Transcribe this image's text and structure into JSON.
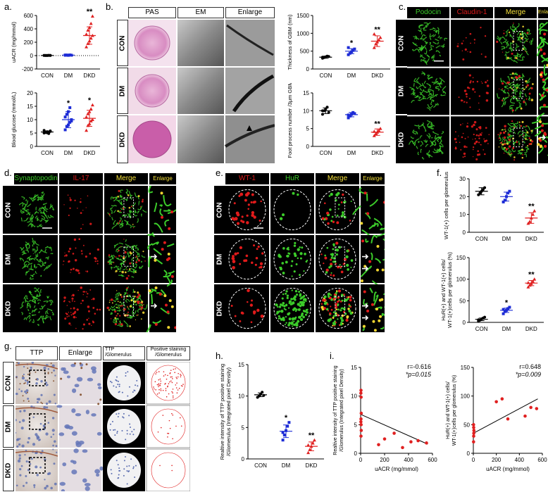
{
  "panel_labels": {
    "a": "a.",
    "b": "b.",
    "c": "c.",
    "d": "d.",
    "e": "e.",
    "f": "f.",
    "g": "g.",
    "h": "h.",
    "i": "i."
  },
  "groups": [
    "CON",
    "DM",
    "DKD"
  ],
  "panel_b": {
    "headers": [
      "PAS",
      "EM",
      "Enlarge"
    ]
  },
  "panel_c": {
    "headers": [
      "Podocin",
      "Claudin-1",
      "Merge",
      "Enlarge"
    ]
  },
  "panel_d": {
    "headers": [
      "Synaptopodin",
      "IL-17",
      "Merge",
      "Enlarge"
    ]
  },
  "panel_e": {
    "headers": [
      "WT-1",
      "HuR",
      "Merge",
      "Enlarge"
    ]
  },
  "panel_g": {
    "headers": [
      "TTP",
      "Enlarge",
      "TTP\n/Glomerulus",
      "Positive staining\n/Glomerulus"
    ]
  },
  "colors": {
    "con": "#000000",
    "dm": "#1c2bd6",
    "dkd": "#e02020",
    "green": "#3ccc2a",
    "red": "#e01b1b",
    "pas": "#d68cc0"
  },
  "chart_data": [
    {
      "id": "a1",
      "type": "scatter",
      "ylabel": "uACR (mg/mmol)",
      "categories": [
        "CON",
        "DM",
        "DKD"
      ],
      "ylim": [
        -200,
        600
      ],
      "yticks": [
        -200,
        0,
        200,
        400,
        600
      ],
      "series": [
        {
          "values": [
            [
              2,
              3,
              1,
              4,
              2,
              3,
              1,
              2,
              3,
              2
            ],
            [
              5,
              8,
              4,
              10,
              6,
              9,
              7,
              5
            ],
            [
              130,
              180,
              220,
              260,
              300,
              320,
              380,
              420,
              480,
              590
            ]
          ],
          "means": [
            2,
            7,
            300
          ],
          "sds": [
            1,
            2,
            130
          ]
        }
      ],
      "annotations": [
        "",
        "",
        "**"
      ]
    },
    {
      "id": "a2",
      "type": "scatter",
      "ylabel": "Blood glucose (mmol/L)",
      "categories": [
        "CON",
        "DM",
        "DKD"
      ],
      "ylim": [
        0,
        20
      ],
      "yticks": [
        0,
        5,
        10,
        15,
        20
      ],
      "series": [
        {
          "values": [
            [
              5,
              5.2,
              5.5,
              4.8,
              5.6,
              6,
              5.3,
              5.1,
              5.4,
              5.8
            ],
            [
              6.2,
              7.5,
              8,
              9,
              10,
              11,
              12,
              13,
              14.5,
              9.5
            ],
            [
              6,
              7.8,
              8.5,
              9.5,
              10,
              11,
              12.2,
              13,
              14,
              15.5
            ]
          ],
          "means": [
            5.4,
            10,
            10.5
          ],
          "sds": [
            0.4,
            3,
            3
          ]
        }
      ],
      "annotations": [
        "",
        "*",
        "*"
      ]
    },
    {
      "id": "b1",
      "type": "scatter",
      "ylabel": "Thickness of GBM (nm)",
      "categories": [
        "CON",
        "DM",
        "DKD"
      ],
      "ylim": [
        0,
        1500
      ],
      "yticks": [
        0,
        500,
        1000,
        1500
      ],
      "series": [
        {
          "values": [
            [
              300,
              320,
              340,
              360,
              350,
              330
            ],
            [
              400,
              440,
              480,
              520,
              560,
              600
            ],
            [
              600,
              700,
              760,
              820,
              880,
              980
            ]
          ],
          "means": [
            330,
            500,
            780
          ],
          "sds": [
            30,
            70,
            150
          ]
        }
      ],
      "annotations": [
        "",
        "*",
        "**"
      ]
    },
    {
      "id": "b2",
      "type": "scatter",
      "ylabel": "Foot process number /3μm GBM",
      "categories": [
        "CON",
        "DM",
        "DKD"
      ],
      "ylim": [
        0,
        15
      ],
      "yticks": [
        0,
        5,
        10,
        15
      ],
      "series": [
        {
          "values": [
            [
              9,
              10,
              10.5,
              11,
              9.5,
              10
            ],
            [
              8,
              8.5,
              9,
              9.5,
              9.2,
              8.8
            ],
            [
              3,
              3.5,
              4,
              4.5,
              5,
              4.2
            ]
          ],
          "means": [
            10,
            8.9,
            4
          ],
          "sds": [
            0.8,
            0.6,
            0.9
          ]
        }
      ],
      "annotations": [
        "",
        "",
        "**"
      ]
    },
    {
      "id": "f1",
      "type": "scatter",
      "ylabel": "WT-1(+) cells per glomerulus",
      "categories": [
        "CON",
        "DM",
        "DKD"
      ],
      "ylim": [
        0,
        30
      ],
      "yticks": [
        0,
        10,
        20,
        30
      ],
      "series": [
        {
          "values": [
            [
              21,
              22,
              23,
              24,
              25
            ],
            [
              17,
              18,
              20,
              22,
              23
            ],
            [
              5,
              6,
              8,
              10,
              12
            ]
          ],
          "means": [
            23,
            20,
            8
          ],
          "sds": [
            2,
            2.5,
            3
          ]
        }
      ],
      "annotations": [
        "",
        "",
        "**"
      ]
    },
    {
      "id": "f2",
      "type": "scatter",
      "ylabel": "HuR(+) and WT-1(+) cells/ WT-1(+)cells per glomerulus (%)",
      "categories": [
        "CON",
        "DM",
        "DKD"
      ],
      "ylim": [
        0,
        150
      ],
      "yticks": [
        0,
        50,
        100,
        150
      ],
      "series": [
        {
          "values": [
            [
              3,
              5,
              8,
              10,
              12,
              6
            ],
            [
              20,
              25,
              28,
              32,
              35,
              30
            ],
            [
              82,
              86,
              90,
              95,
              100,
              92
            ]
          ],
          "means": [
            7,
            28,
            91
          ],
          "sds": [
            3,
            5,
            6
          ]
        }
      ],
      "annotations": [
        "",
        "*",
        "**"
      ]
    },
    {
      "id": "h1",
      "type": "scatter",
      "ylabel": "Realtive intensity of TTP positive staining /Glomerulus (Integrated pixel Density)",
      "categories": [
        "CON",
        "DM",
        "DKD"
      ],
      "ylim": [
        0,
        15
      ],
      "yticks": [
        0,
        5,
        10,
        15
      ],
      "series": [
        {
          "values": [
            [
              9.8,
              10,
              10.3,
              10.6,
              10.1
            ],
            [
              3,
              3.8,
              4.5,
              5.2,
              5.8,
              4.2
            ],
            [
              1,
              1.5,
              2,
              2.5,
              3,
              2.2
            ]
          ],
          "means": [
            10.2,
            4.4,
            2
          ],
          "sds": [
            0.3,
            1,
            0.7
          ]
        }
      ],
      "annotations": [
        "",
        "*",
        "**"
      ]
    },
    {
      "id": "i1",
      "type": "scatter",
      "xlabel": "uACR (mg/mmol)",
      "ylabel": "Realtive intensity of TTP positive staining /Glomerulus (Integrated pixel Density)",
      "xlim": [
        0,
        600
      ],
      "xticks": [
        0,
        200,
        400,
        600
      ],
      "ylim": [
        0,
        15
      ],
      "yticks": [
        0,
        5,
        10,
        15
      ],
      "points": [
        [
          2,
          10.5
        ],
        [
          3,
          11
        ],
        [
          4,
          9.8
        ],
        [
          5,
          7
        ],
        [
          3,
          6
        ],
        [
          2,
          5.5
        ],
        [
          4,
          5
        ],
        [
          5,
          4
        ],
        [
          3,
          3
        ],
        [
          150,
          1.5
        ],
        [
          200,
          2.5
        ],
        [
          280,
          3.5
        ],
        [
          350,
          1
        ],
        [
          420,
          2
        ],
        [
          480,
          2.2
        ],
        [
          550,
          1.8
        ]
      ],
      "fit": [
        [
          0,
          6.8
        ],
        [
          560,
          1.6
        ]
      ],
      "stats": [
        "r=-0.616",
        "*p=0.015"
      ]
    },
    {
      "id": "i2",
      "type": "scatter",
      "xlabel": "uACR (mg/mmol)",
      "ylabel": "HuR(+) and WT-1(+) cells/ WT-1(+)cells per glomerulus (%)",
      "xlim": [
        0,
        600
      ],
      "xticks": [
        0,
        200,
        400,
        600
      ],
      "ylim": [
        0,
        150
      ],
      "yticks": [
        0,
        50,
        100,
        150
      ],
      "points": [
        [
          2,
          20
        ],
        [
          3,
          30
        ],
        [
          4,
          35
        ],
        [
          5,
          40
        ],
        [
          3,
          45
        ],
        [
          2,
          50
        ],
        [
          200,
          90
        ],
        [
          250,
          95
        ],
        [
          300,
          60
        ],
        [
          450,
          65
        ],
        [
          500,
          80
        ],
        [
          550,
          78
        ]
      ],
      "fit": [
        [
          0,
          35
        ],
        [
          560,
          95
        ]
      ],
      "stats": [
        "r=0.648",
        "*p=0.009"
      ]
    }
  ]
}
